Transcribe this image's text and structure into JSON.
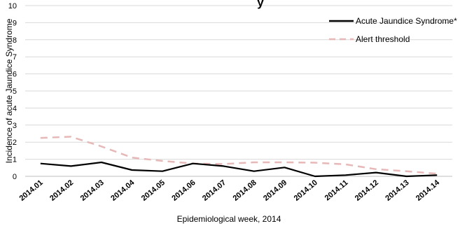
{
  "chart_data": {
    "type": "line",
    "title_fragment": "y",
    "xlabel": "Epidemiological week, 2014",
    "ylabel": "Incidence of acute Jaundice Syndrome",
    "ylim": [
      0,
      10
    ],
    "yticks": [
      0,
      1,
      2,
      3,
      4,
      5,
      6,
      7,
      8,
      9,
      10
    ],
    "grid": true,
    "legend_position": "top-right",
    "categories": [
      "2014.01",
      "2014.02",
      "2014.03",
      "2014.04",
      "2014.05",
      "2014.06",
      "2014.07",
      "2014.08",
      "2014.09",
      "2014.10",
      "2014.11",
      "2014.12",
      "2014.13",
      "2014.14"
    ],
    "series": [
      {
        "name": "Acute Jaundice Syndrome*",
        "color": "#000000",
        "style": "solid",
        "values": [
          0.75,
          0.6,
          0.82,
          0.37,
          0.3,
          0.75,
          0.6,
          0.3,
          0.52,
          0.0,
          0.07,
          0.22,
          0.0,
          0.07
        ]
      },
      {
        "name": "Alert threshold",
        "color": "#e6b8b7",
        "style": "dashed",
        "values": [
          2.25,
          2.32,
          1.75,
          1.1,
          0.9,
          0.75,
          0.72,
          0.82,
          0.82,
          0.8,
          0.7,
          0.42,
          0.3,
          0.15
        ]
      }
    ]
  }
}
